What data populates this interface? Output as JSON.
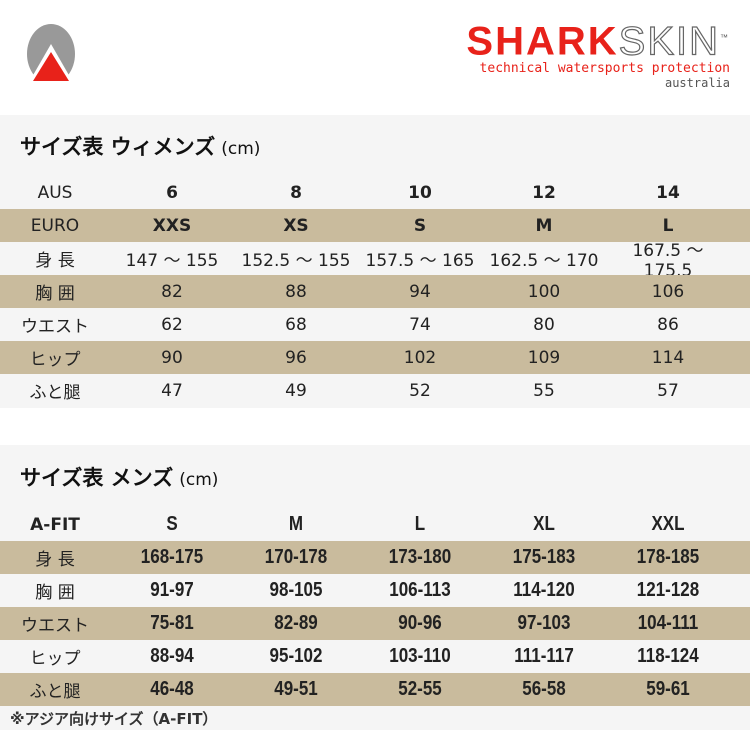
{
  "brand": {
    "name_red": "SHARK",
    "name_outline": "SKIN",
    "trademark": "™",
    "tagline": "technical watersports protection",
    "region": "australia",
    "colors": {
      "red": "#e8221a",
      "gray": "#555555",
      "tan": "#c9bb9d"
    }
  },
  "women": {
    "title": "サイズ表 ウィメンズ",
    "unit": "(cm)",
    "header": {
      "label": "AUS",
      "values": [
        "6",
        "8",
        "10",
        "12",
        "14"
      ]
    },
    "rows": [
      {
        "label": "EURO",
        "values": [
          "XXS",
          "XS",
          "S",
          "M",
          "L"
        ]
      },
      {
        "label": "身 長",
        "values": [
          "147 〜 155",
          "152.5 〜 155",
          "157.5 〜 165",
          "162.5 〜 170",
          "167.5 〜 175.5"
        ]
      },
      {
        "label": "胸 囲",
        "values": [
          "82",
          "88",
          "94",
          "100",
          "106"
        ]
      },
      {
        "label": "ウエスト",
        "values": [
          "62",
          "68",
          "74",
          "80",
          "86"
        ]
      },
      {
        "label": "ヒップ",
        "values": [
          "90",
          "96",
          "102",
          "109",
          "114"
        ]
      },
      {
        "label": "ふと腿",
        "values": [
          "47",
          "49",
          "52",
          "55",
          "57"
        ]
      }
    ]
  },
  "men": {
    "title": "サイズ表 メンズ",
    "unit": "(cm)",
    "header": {
      "label": "A-FIT",
      "values": [
        "S",
        "M",
        "L",
        "XL",
        "XXL"
      ]
    },
    "rows": [
      {
        "label": "身 長",
        "values": [
          "168-175",
          "170-178",
          "173-180",
          "175-183",
          "178-185"
        ]
      },
      {
        "label": "胸 囲",
        "values": [
          "91-97",
          "98-105",
          "106-113",
          "114-120",
          "121-128"
        ]
      },
      {
        "label": "ウエスト",
        "values": [
          "75-81",
          "82-89",
          "90-96",
          "97-103",
          "104-111"
        ]
      },
      {
        "label": "ヒップ",
        "values": [
          "88-94",
          "95-102",
          "103-110",
          "111-117",
          "118-124"
        ]
      },
      {
        "label": "ふと腿",
        "values": [
          "46-48",
          "49-51",
          "52-55",
          "56-58",
          "59-61"
        ]
      }
    ],
    "note": "※アジア向けサイズ（A-FIT）"
  }
}
